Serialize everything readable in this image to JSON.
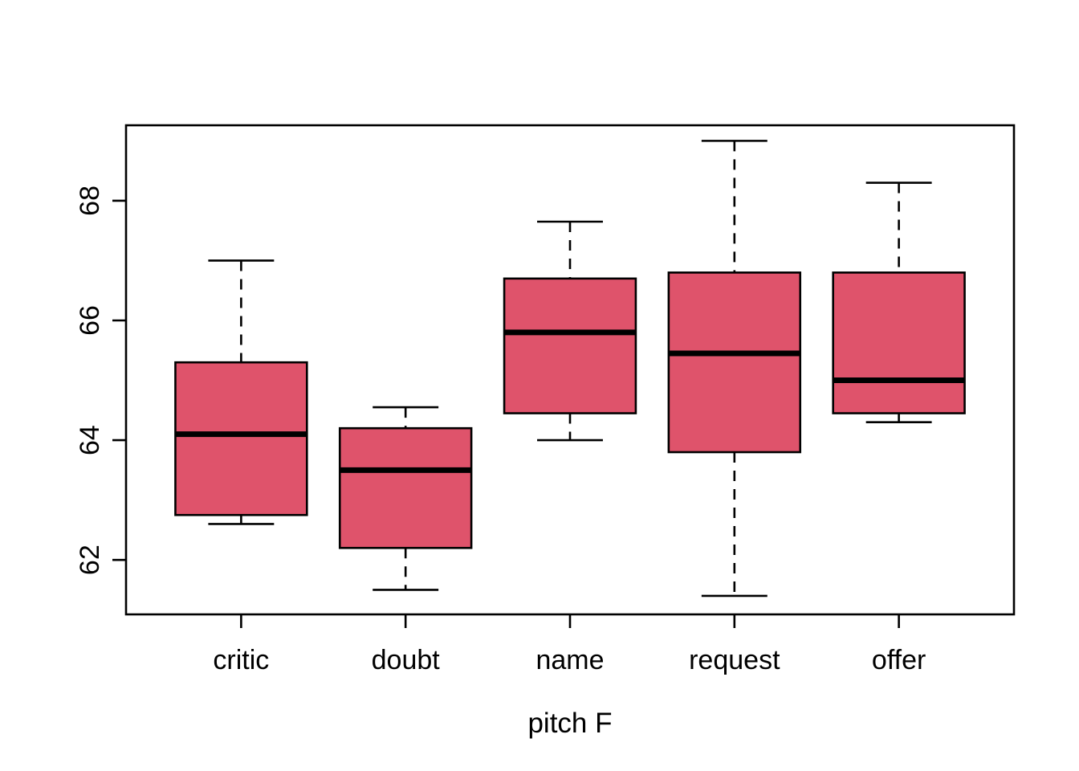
{
  "chart_data": {
    "type": "boxplot",
    "title": "",
    "xlabel": "pitch F",
    "ylabel": "",
    "categories": [
      "critic",
      "doubt",
      "name",
      "request",
      "offer"
    ],
    "yticks": [
      62,
      64,
      66,
      68
    ],
    "ylim": [
      61.09,
      69.26
    ],
    "xlim": [
      0.3,
      5.7
    ],
    "grid": false,
    "legend": null,
    "box_fill_color": "#DF536B",
    "box_stroke_color": "#000000",
    "series": [
      {
        "name": "critic",
        "min": 62.6,
        "q1": 62.75,
        "median": 64.1,
        "q3": 65.3,
        "max": 67.0
      },
      {
        "name": "doubt",
        "min": 61.5,
        "q1": 62.2,
        "median": 63.5,
        "q3": 64.2,
        "max": 64.55
      },
      {
        "name": "name",
        "min": 64.0,
        "q1": 64.45,
        "median": 65.8,
        "q3": 66.7,
        "max": 67.65
      },
      {
        "name": "request",
        "min": 61.4,
        "q1": 63.8,
        "median": 65.45,
        "q3": 66.8,
        "max": 69.0
      },
      {
        "name": "offer",
        "min": 64.3,
        "q1": 64.45,
        "median": 65.0,
        "q3": 66.8,
        "max": 68.3
      }
    ]
  }
}
